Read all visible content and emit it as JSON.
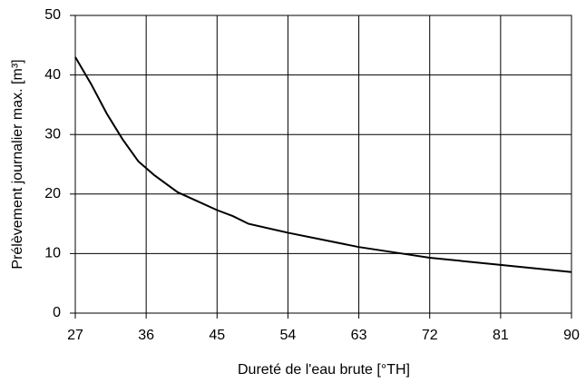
{
  "chart_data": {
    "type": "line",
    "xlabel": "Dureté de l'eau brute [°TH]",
    "ylabel": "Prélèvement journalier max. [m³]",
    "x": [
      27,
      29,
      31,
      33,
      35,
      37,
      40,
      45,
      47,
      49,
      54,
      63,
      69,
      72,
      81,
      90
    ],
    "series": [
      {
        "name": "Prélèvement journalier max.",
        "color": "#000000",
        "values": [
          43,
          38.5,
          33.5,
          29.2,
          25.5,
          23.2,
          20.3,
          17.3,
          16.3,
          15,
          13.5,
          11.1,
          9.9,
          9.3,
          8.1,
          6.9
        ]
      }
    ],
    "xlim": [
      27,
      90
    ],
    "xticks": [
      27,
      36,
      45,
      54,
      63,
      72,
      81,
      90
    ],
    "ylim": [
      0,
      50
    ],
    "yticks": [
      0,
      10,
      20,
      30,
      40,
      50
    ],
    "grid": true,
    "legend": false
  }
}
